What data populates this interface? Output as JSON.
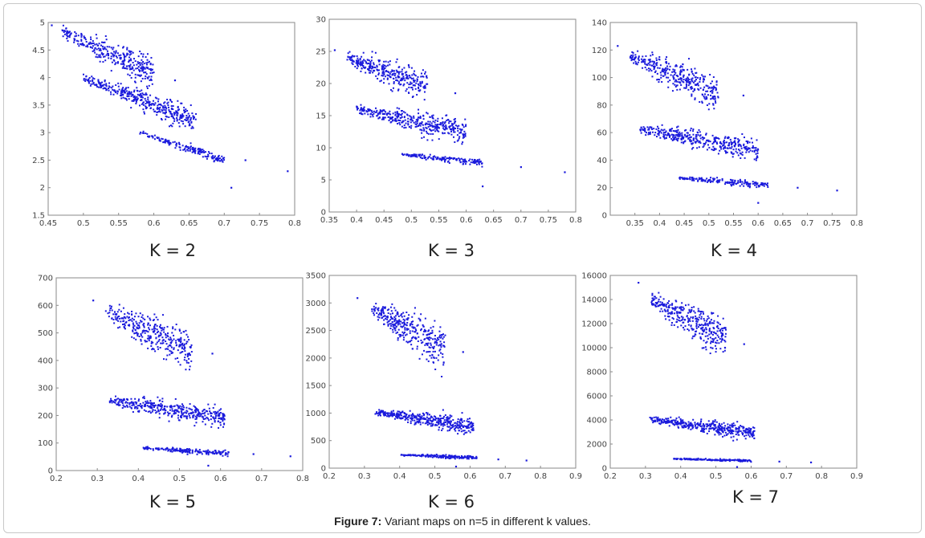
{
  "figure": {
    "caption_label": "Figure 7:",
    "caption_text": " Variant maps on n=5 in different k values."
  },
  "colors": {
    "points": "#1a1adc",
    "axes": "#8a8a8a"
  },
  "chart_data": [
    {
      "type": "scatter",
      "k_label": "K = 2",
      "xlim": [
        0.45,
        0.8
      ],
      "ylim": [
        1.5,
        5
      ],
      "xticks": [
        0.45,
        0.5,
        0.55,
        0.6,
        0.65,
        0.7,
        0.75,
        0.8
      ],
      "xtick_labels": [
        "0.45",
        "0.5",
        "0.55",
        "0.6",
        "0.65",
        "0.7",
        "0.75",
        "0.8"
      ],
      "yticks": [
        1.5,
        2,
        2.5,
        3,
        3.5,
        4,
        4.5,
        5
      ],
      "ytick_labels": [
        "1.5",
        "2",
        "2.5",
        "3",
        "3.5",
        "4",
        "4.5",
        "5"
      ],
      "clusters": [
        {
          "x": [
            0.47,
            0.6
          ],
          "y": [
            4.85,
            4.05
          ],
          "spread": 0.12,
          "n": 320
        },
        {
          "x": [
            0.5,
            0.66
          ],
          "y": [
            4.0,
            3.2
          ],
          "spread": 0.1,
          "n": 380
        },
        {
          "x": [
            0.58,
            0.7
          ],
          "y": [
            3.0,
            2.5
          ],
          "spread": 0.04,
          "n": 160
        }
      ],
      "outliers": [
        [
          0.455,
          4.95
        ],
        [
          0.73,
          2.5
        ],
        [
          0.79,
          2.3
        ],
        [
          0.71,
          2.0
        ],
        [
          0.63,
          3.95
        ]
      ]
    },
    {
      "type": "scatter",
      "k_label": "K = 3",
      "xlim": [
        0.35,
        0.8
      ],
      "ylim": [
        0,
        30
      ],
      "xticks": [
        0.35,
        0.4,
        0.45,
        0.5,
        0.55,
        0.6,
        0.65,
        0.7,
        0.75,
        0.8
      ],
      "xtick_labels": [
        "0.35",
        "0.4",
        "0.45",
        "0.5",
        "0.55",
        "0.6",
        "0.65",
        "0.7",
        "0.75",
        "0.8"
      ],
      "yticks": [
        0,
        5,
        10,
        15,
        20,
        25,
        30
      ],
      "ytick_labels": [
        "0",
        "5",
        "10",
        "15",
        "20",
        "25",
        "30"
      ],
      "clusters": [
        {
          "x": [
            0.38,
            0.53
          ],
          "y": [
            24,
            19.5
          ],
          "spread": 1.1,
          "n": 320
        },
        {
          "x": [
            0.4,
            0.6
          ],
          "y": [
            16,
            12.5
          ],
          "spread": 0.9,
          "n": 380
        },
        {
          "x": [
            0.48,
            0.63
          ],
          "y": [
            9,
            7.7
          ],
          "spread": 0.25,
          "n": 160
        }
      ],
      "outliers": [
        [
          0.36,
          25.2
        ],
        [
          0.58,
          18.5
        ],
        [
          0.7,
          7
        ],
        [
          0.78,
          6.2
        ],
        [
          0.63,
          4
        ]
      ]
    },
    {
      "type": "scatter",
      "k_label": "K = 4",
      "xlim": [
        0.3,
        0.8
      ],
      "ylim": [
        0,
        140
      ],
      "xticks": [
        0.35,
        0.4,
        0.45,
        0.5,
        0.55,
        0.6,
        0.65,
        0.7,
        0.75,
        0.8
      ],
      "xtick_labels": [
        "0.35",
        "0.4",
        "0.45",
        "0.5",
        "0.55",
        "0.6",
        "0.65",
        "0.7",
        "0.75",
        "0.8"
      ],
      "yticks": [
        0,
        20,
        40,
        60,
        80,
        100,
        120,
        140
      ],
      "ytick_labels": [
        "0",
        "20",
        "40",
        "60",
        "80",
        "100",
        "120",
        "140"
      ],
      "clusters": [
        {
          "x": [
            0.34,
            0.52
          ],
          "y": [
            115,
            88
          ],
          "spread": 6,
          "n": 340
        },
        {
          "x": [
            0.36,
            0.6
          ],
          "y": [
            63,
            47
          ],
          "spread": 4,
          "n": 380
        },
        {
          "x": [
            0.44,
            0.62
          ],
          "y": [
            27,
            22
          ],
          "spread": 1.2,
          "n": 160
        }
      ],
      "outliers": [
        [
          0.315,
          123
        ],
        [
          0.57,
          87
        ],
        [
          0.68,
          20
        ],
        [
          0.76,
          18
        ],
        [
          0.6,
          9
        ]
      ]
    },
    {
      "type": "scatter",
      "k_label": "K = 5",
      "xlim": [
        0.2,
        0.8
      ],
      "ylim": [
        0,
        700
      ],
      "xticks": [
        0.2,
        0.3,
        0.4,
        0.5,
        0.6,
        0.7,
        0.8
      ],
      "xtick_labels": [
        "0.2",
        "0.3",
        "0.4",
        "0.5",
        "0.6",
        "0.7",
        "0.8"
      ],
      "yticks": [
        0,
        100,
        200,
        300,
        400,
        500,
        600,
        700
      ],
      "ytick_labels": [
        "0",
        "100",
        "200",
        "300",
        "400",
        "500",
        "600",
        "700"
      ],
      "clusters": [
        {
          "x": [
            0.32,
            0.53
          ],
          "y": [
            580,
            430
          ],
          "spread": 35,
          "n": 340
        },
        {
          "x": [
            0.33,
            0.61
          ],
          "y": [
            255,
            190
          ],
          "spread": 18,
          "n": 380
        },
        {
          "x": [
            0.41,
            0.62
          ],
          "y": [
            82,
            62
          ],
          "spread": 5,
          "n": 160
        }
      ],
      "outliers": [
        [
          0.29,
          618
        ],
        [
          0.58,
          425
        ],
        [
          0.68,
          60
        ],
        [
          0.77,
          52
        ],
        [
          0.57,
          18
        ]
      ]
    },
    {
      "type": "scatter",
      "k_label": "K = 6",
      "xlim": [
        0.2,
        0.9
      ],
      "ylim": [
        0,
        3500
      ],
      "xticks": [
        0.2,
        0.3,
        0.4,
        0.5,
        0.6,
        0.7,
        0.8,
        0.9
      ],
      "xtick_labels": [
        "0.2",
        "0.3",
        "0.4",
        "0.5",
        "0.6",
        "0.7",
        "0.8",
        "0.9"
      ],
      "yticks": [
        0,
        500,
        1000,
        1500,
        2000,
        2500,
        3000,
        3500
      ],
      "ytick_labels": [
        "0",
        "500",
        "1000",
        "1500",
        "2000",
        "2500",
        "3000",
        "3500"
      ],
      "clusters": [
        {
          "x": [
            0.32,
            0.53
          ],
          "y": [
            2900,
            2150
          ],
          "spread": 180,
          "n": 340
        },
        {
          "x": [
            0.33,
            0.61
          ],
          "y": [
            1020,
            760
          ],
          "spread": 70,
          "n": 380
        },
        {
          "x": [
            0.4,
            0.62
          ],
          "y": [
            240,
            190
          ],
          "spread": 15,
          "n": 160
        }
      ],
      "outliers": [
        [
          0.28,
          3090
        ],
        [
          0.58,
          2110
        ],
        [
          0.68,
          160
        ],
        [
          0.76,
          140
        ],
        [
          0.56,
          30
        ]
      ]
    },
    {
      "type": "scatter",
      "k_label": "K = 7",
      "xlim": [
        0.2,
        0.9
      ],
      "ylim": [
        0,
        16000
      ],
      "xticks": [
        0.2,
        0.3,
        0.4,
        0.5,
        0.6,
        0.7,
        0.8,
        0.9
      ],
      "xtick_labels": [
        "0.2",
        "0.3",
        "0.4",
        "0.5",
        "0.6",
        "0.7",
        "0.8",
        "0.9"
      ],
      "yticks": [
        0,
        2000,
        4000,
        6000,
        8000,
        10000,
        12000,
        14000,
        16000
      ],
      "ytick_labels": [
        "0",
        "2000",
        "4000",
        "6000",
        "8000",
        "10000",
        "12000",
        "14000",
        "16000"
      ],
      "clusters": [
        {
          "x": [
            0.31,
            0.53
          ],
          "y": [
            14000,
            10800
          ],
          "spread": 800,
          "n": 340
        },
        {
          "x": [
            0.31,
            0.61
          ],
          "y": [
            4050,
            2950
          ],
          "spread": 280,
          "n": 380
        },
        {
          "x": [
            0.38,
            0.6
          ],
          "y": [
            780,
            600
          ],
          "spread": 45,
          "n": 160
        }
      ],
      "outliers": [
        [
          0.28,
          15400
        ],
        [
          0.58,
          10300
        ],
        [
          0.68,
          550
        ],
        [
          0.77,
          480
        ],
        [
          0.56,
          100
        ]
      ]
    }
  ]
}
